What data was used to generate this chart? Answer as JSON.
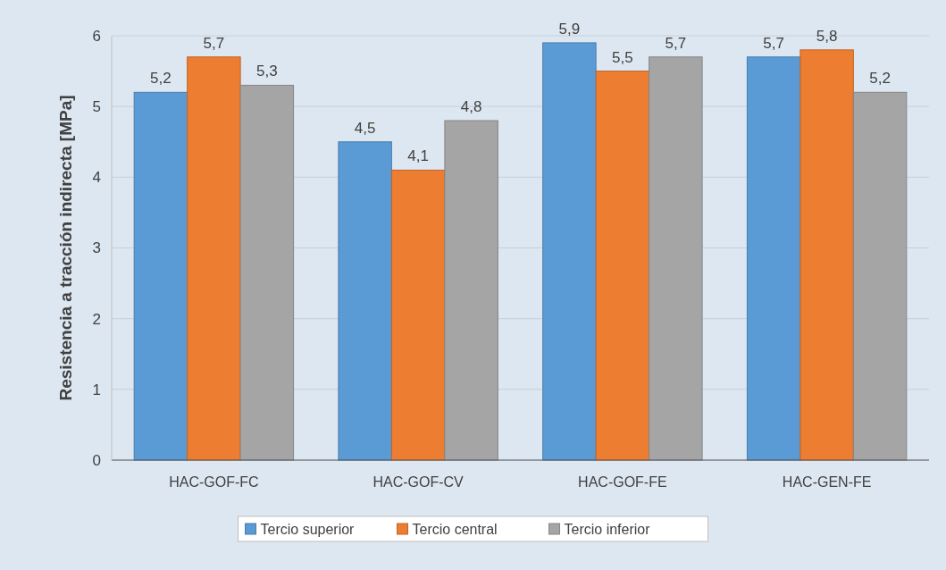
{
  "chart_data": {
    "type": "bar",
    "ylabel": "Resistencia a tracción indirecta [MPa]",
    "categories": [
      "HAC-GOF-FC",
      "HAC-GOF-CV",
      "HAC-GOF-FE",
      "HAC-GEN-FE"
    ],
    "series": [
      {
        "name": "Tercio superior",
        "color": "#5b9bd5",
        "values": [
          5.2,
          4.5,
          5.9,
          5.7
        ],
        "value_labels": [
          "5,2",
          "4,5",
          "5,9",
          "5,7"
        ]
      },
      {
        "name": "Tercio central",
        "color": "#ed7d31",
        "values": [
          5.7,
          4.1,
          5.5,
          5.8
        ],
        "value_labels": [
          "5,7",
          "4,1",
          "5,5",
          "5,8"
        ]
      },
      {
        "name": "Tercio inferior",
        "color": "#a5a5a5",
        "values": [
          5.3,
          4.8,
          5.7,
          5.2
        ],
        "value_labels": [
          "5,3",
          "4,8",
          "5,7",
          "5,2"
        ]
      }
    ],
    "ylim": [
      0,
      6
    ],
    "yticks": [
      0,
      1,
      2,
      3,
      4,
      5,
      6
    ],
    "grid": "y",
    "legend": "bottom"
  }
}
